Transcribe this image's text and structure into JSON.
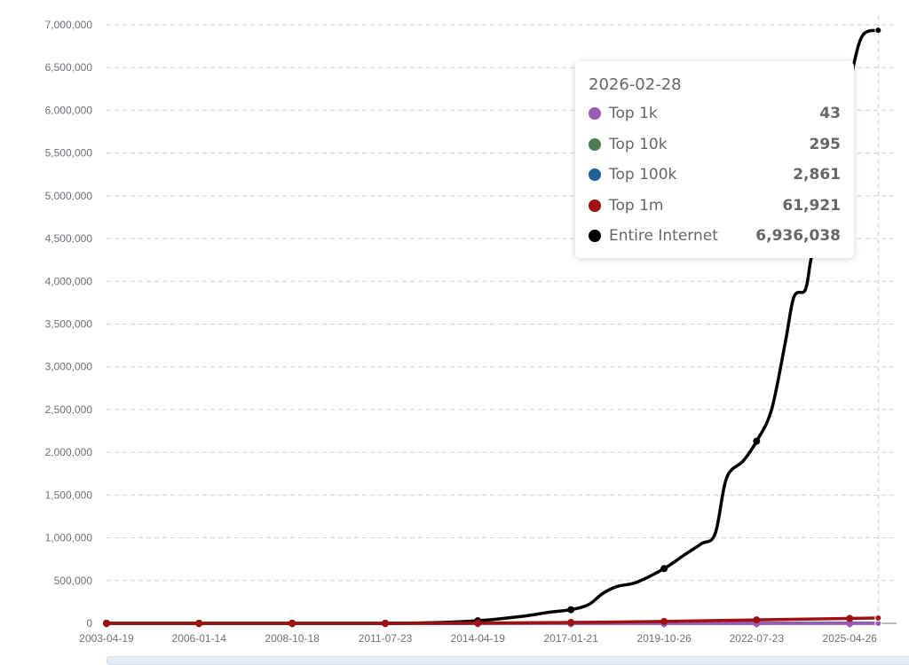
{
  "chart_data": {
    "type": "line",
    "title": "",
    "xlabel": "",
    "ylabel": "",
    "ylim": [
      0,
      7000000
    ],
    "yticks": [
      "0",
      "500,000",
      "1,000,000",
      "1,500,000",
      "2,000,000",
      "2,500,000",
      "3,000,000",
      "3,500,000",
      "4,000,000",
      "4,500,000",
      "5,000,000",
      "5,500,000",
      "6,000,000",
      "6,500,000",
      "7,000,000"
    ],
    "xticks": [
      "2003-04-19",
      "2006-01-14",
      "2008-10-18",
      "2011-07-23",
      "2014-04-19",
      "2017-01-21",
      "2019-10-26",
      "2022-07-23",
      "2025-04-26"
    ],
    "xlim": [
      "2003-04-19",
      "2026-02-28"
    ],
    "grid": true,
    "series": [
      {
        "name": "Top 1k",
        "color": "#9b59b6",
        "points": [
          [
            "2003-04-19",
            0
          ],
          [
            "2014-04-19",
            2
          ],
          [
            "2020-01-01",
            20
          ],
          [
            "2026-02-28",
            43
          ]
        ]
      },
      {
        "name": "Top 10k",
        "color": "#4e7d55",
        "points": [
          [
            "2003-04-19",
            0
          ],
          [
            "2014-04-19",
            10
          ],
          [
            "2020-01-01",
            140
          ],
          [
            "2026-02-28",
            295
          ]
        ]
      },
      {
        "name": "Top 100k",
        "color": "#1f5f9a",
        "points": [
          [
            "2003-04-19",
            0
          ],
          [
            "2014-04-19",
            100
          ],
          [
            "2020-01-01",
            1300
          ],
          [
            "2026-02-28",
            2861
          ]
        ]
      },
      {
        "name": "Top 1m",
        "color": "#a01010",
        "points": [
          [
            "2003-04-19",
            0
          ],
          [
            "2011-07-23",
            0
          ],
          [
            "2014-04-19",
            3000
          ],
          [
            "2017-01-21",
            10000
          ],
          [
            "2019-10-26",
            22000
          ],
          [
            "2022-07-23",
            40000
          ],
          [
            "2025-04-26",
            57000
          ],
          [
            "2026-02-28",
            61921
          ]
        ]
      },
      {
        "name": "Entire Internet",
        "color": "#000000",
        "points": [
          [
            "2003-04-19",
            0
          ],
          [
            "2006-01-14",
            0
          ],
          [
            "2008-10-18",
            0
          ],
          [
            "2011-07-23",
            0
          ],
          [
            "2013-01-01",
            8000
          ],
          [
            "2014-04-19",
            30000
          ],
          [
            "2015-08-01",
            80000
          ],
          [
            "2016-06-01",
            130000
          ],
          [
            "2017-01-21",
            160000
          ],
          [
            "2017-08-01",
            220000
          ],
          [
            "2018-01-01",
            350000
          ],
          [
            "2018-06-01",
            430000
          ],
          [
            "2019-01-01",
            480000
          ],
          [
            "2019-10-26",
            640000
          ],
          [
            "2020-06-01",
            800000
          ],
          [
            "2020-12-01",
            930000
          ],
          [
            "2021-05-01",
            1050000
          ],
          [
            "2021-09-01",
            1700000
          ],
          [
            "2022-03-01",
            1900000
          ],
          [
            "2022-07-23",
            2130000
          ],
          [
            "2023-01-01",
            2500000
          ],
          [
            "2023-06-01",
            3300000
          ],
          [
            "2023-09-01",
            3820000
          ],
          [
            "2024-01-01",
            3900000
          ],
          [
            "2024-03-01",
            4250000
          ],
          [
            "2024-06-01",
            4700000
          ],
          [
            "2024-10-01",
            5050000
          ],
          [
            "2025-02-01",
            5800000
          ],
          [
            "2025-06-01",
            6500000
          ],
          [
            "2025-09-15",
            6880000
          ],
          [
            "2026-02-28",
            6936038
          ]
        ]
      }
    ]
  },
  "tooltip": {
    "date": "2026-02-28",
    "rows": [
      {
        "name": "Top 1k",
        "value": "43",
        "color": "#9b59b6"
      },
      {
        "name": "Top 10k",
        "value": "295",
        "color": "#4e7d55"
      },
      {
        "name": "Top 100k",
        "value": "2,861",
        "color": "#1f5f9a"
      },
      {
        "name": "Top 1m",
        "value": "61,921",
        "color": "#a01010"
      },
      {
        "name": "Entire Internet",
        "value": "6,936,038",
        "color": "#000000"
      }
    ]
  }
}
